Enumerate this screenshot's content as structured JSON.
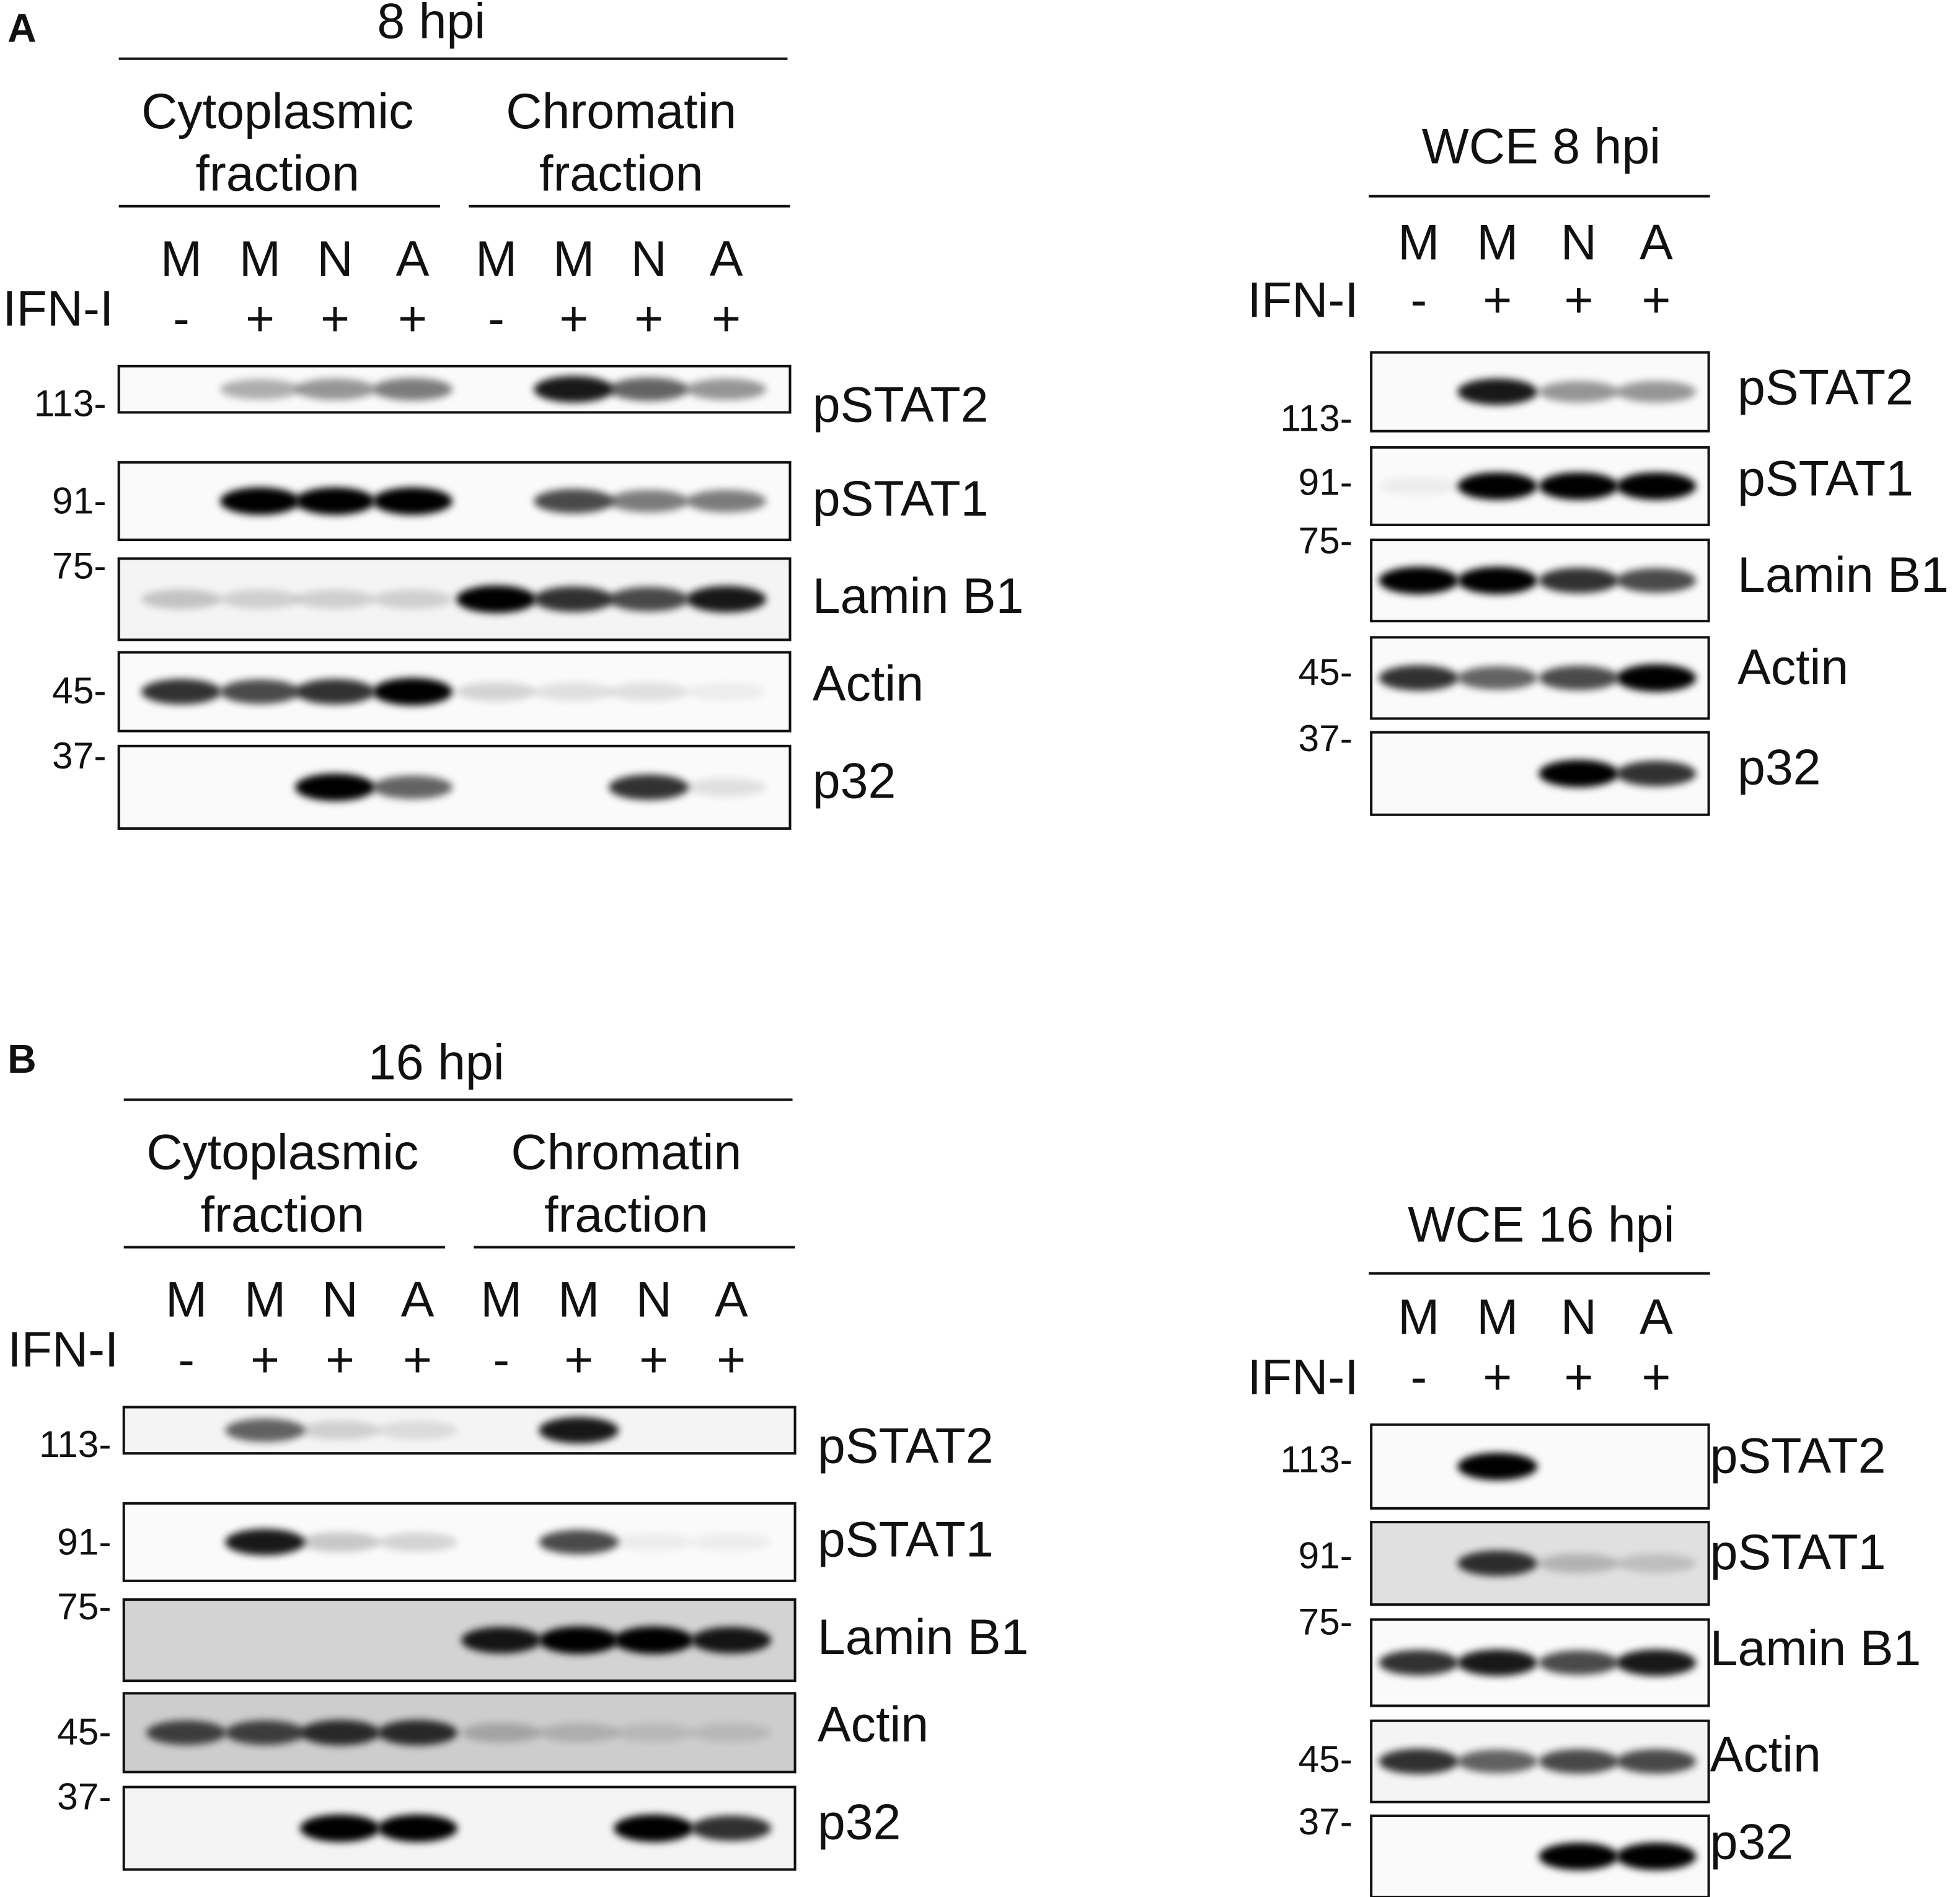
{
  "panels": [
    {
      "label": "A",
      "time": "8 hpi",
      "fractions": [
        [
          "Cytoplasmic",
          "fraction"
        ],
        [
          "Chromatin",
          "fraction"
        ]
      ],
      "lanes": [
        "M",
        "M",
        "N",
        "A",
        "M",
        "M",
        "N",
        "A"
      ],
      "treatment_label": "IFN-I",
      "treatment": [
        "-",
        "+",
        "+",
        "+",
        "-",
        "+",
        "+",
        "+"
      ],
      "markers": [
        "113-",
        "91-",
        "75-",
        "45-",
        "37-"
      ],
      "proteins": [
        "pSTAT2",
        "pSTAT1",
        "Lamin B1",
        "Actin",
        "p32"
      ],
      "wce": {
        "title": "WCE 8 hpi",
        "lanes": [
          "M",
          "M",
          "N",
          "A"
        ],
        "treatment_label": "IFN-I",
        "treatment": [
          "-",
          "+",
          "+",
          "+"
        ],
        "markers": [
          "113-",
          "91-",
          "75-",
          "45-",
          "37-"
        ],
        "proteins": [
          "pSTAT2",
          "pSTAT1",
          "Lamin B1",
          "Actin",
          "p32"
        ]
      }
    },
    {
      "label": "B",
      "time": "16 hpi",
      "fractions": [
        [
          "Cytoplasmic",
          "fraction"
        ],
        [
          "Chromatin",
          "fraction"
        ]
      ],
      "lanes": [
        "M",
        "M",
        "N",
        "A",
        "M",
        "M",
        "N",
        "A"
      ],
      "treatment_label": "IFN-I",
      "treatment": [
        "-",
        "+",
        "+",
        "+",
        "-",
        "+",
        "+",
        "+"
      ],
      "markers": [
        "113-",
        "91-",
        "75-",
        "45-",
        "37-"
      ],
      "proteins": [
        "pSTAT2",
        "pSTAT1",
        "Lamin B1",
        "Actin",
        "p32"
      ],
      "wce": {
        "title": "WCE 16 hpi",
        "lanes": [
          "M",
          "M",
          "N",
          "A"
        ],
        "treatment_label": "IFN-I",
        "treatment": [
          "-",
          "+",
          "+",
          "+"
        ],
        "markers": [
          "113-",
          "91-",
          "75-",
          "45-",
          "37-"
        ],
        "proteins": [
          "pSTAT2",
          "pSTAT1",
          "Lamin B1",
          "Actin",
          "p32"
        ]
      }
    }
  ]
}
